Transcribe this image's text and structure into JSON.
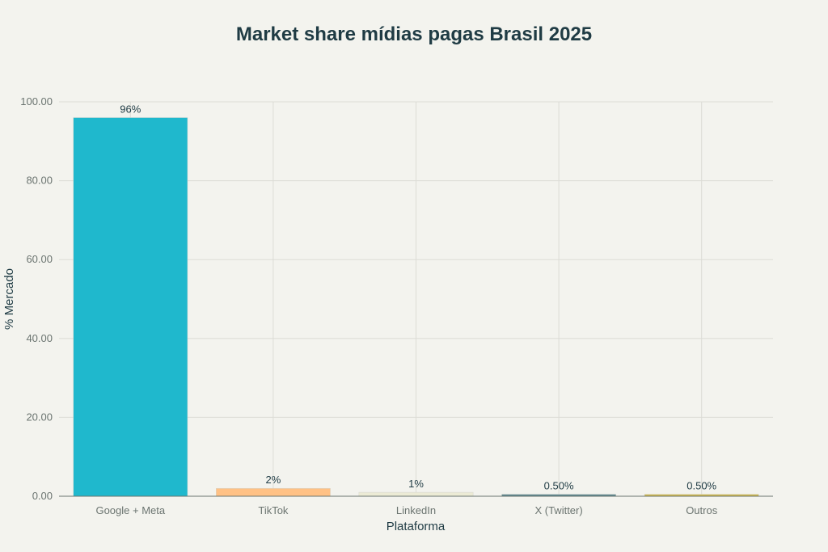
{
  "chart_data": {
    "type": "bar",
    "title": "Market share mídias pagas Brasil 2025",
    "xlabel": "Plataforma",
    "ylabel": "% Mercado",
    "ylim": [
      0,
      100
    ],
    "yticks": [
      "0.00",
      "20.00",
      "40.00",
      "60.00",
      "80.00",
      "100.00"
    ],
    "grid": true,
    "categories": [
      "Google + Meta",
      "TikTok",
      "LinkedIn",
      "X (Twitter)",
      "Outros"
    ],
    "values": [
      96,
      2,
      1,
      0.5,
      0.5
    ],
    "data_labels": [
      "96%",
      "2%",
      "1%",
      "0.50%",
      "0.50%"
    ],
    "colors": [
      "#1fb8cd",
      "#ffc185",
      "#ecebd5",
      "#5d878f",
      "#d2ba4c"
    ]
  }
}
